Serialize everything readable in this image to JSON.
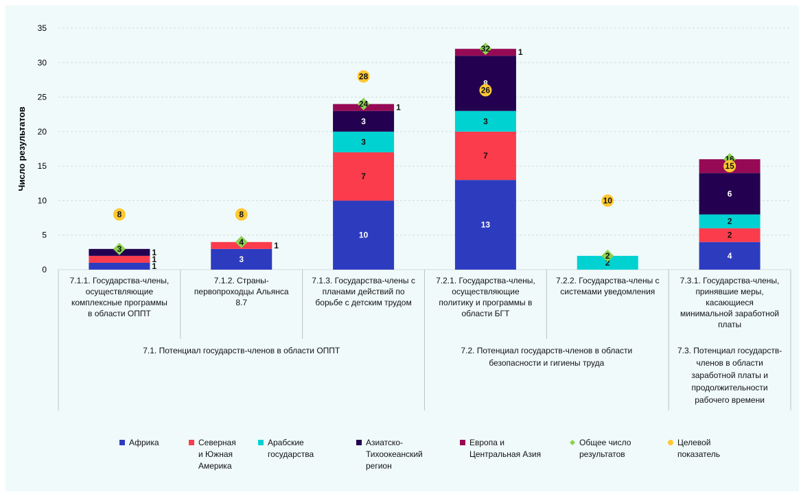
{
  "chart_data": {
    "type": "bar",
    "ylabel": "Число результатов",
    "ylim": [
      0,
      35
    ],
    "yticks": [
      0,
      5,
      10,
      15,
      20,
      25,
      30,
      35
    ],
    "grid": true,
    "legend_position": "bottom",
    "categories": [
      [
        "7.1.1. Государства-члены,",
        "осуществляющие",
        "комплексные программы",
        "в области ОППТ"
      ],
      [
        "7.1.2. Страны-",
        "первопроходцы Альянса",
        "8.7"
      ],
      [
        "7.1.3. Государства-члены с",
        "планами действий по",
        "борьбе с детским трудом"
      ],
      [
        "7.2.1. Государства-члены,",
        "осуществляющие",
        "политику и программы в",
        "области БГТ"
      ],
      [
        "7.2.2. Государства-члены с",
        "системами уведомления"
      ],
      [
        "7.3.1. Государства-члены,",
        "принявшие меры,",
        "касающиеся",
        "минимальной заработной",
        "платы"
      ]
    ],
    "groups": [
      {
        "label": [
          "7.1. Потенциал государств-членов в области ОППТ"
        ]
      },
      {
        "label": [
          "7.2. Потенциал государств-членов в области",
          "безопасности и гигиены труда"
        ]
      },
      {
        "label": [
          "7.3. Потенциал государств-",
          "членов в области",
          "заработной платы и",
          "продолжительности",
          "рабочего времени"
        ]
      }
    ],
    "series": [
      {
        "name": "Африка",
        "color": "#2d3cbf",
        "values": [
          1,
          3,
          10,
          13,
          0,
          4
        ]
      },
      {
        "name": "Северная и Южная Америка",
        "legend_lines": [
          "Северная",
          "и Южная",
          "Америка"
        ],
        "color": "#fa3c4c",
        "values": [
          1,
          1,
          7,
          7,
          0,
          2
        ]
      },
      {
        "name": "Арабские государства",
        "legend_lines": [
          "Арабские",
          "государства"
        ],
        "color": "#00d2d2",
        "values": [
          0,
          0,
          3,
          3,
          2,
          2
        ]
      },
      {
        "name": "Азиатско-Тихоокеанский регион",
        "legend_lines": [
          "Азиатско-",
          "Тихоокеанский",
          "регион"
        ],
        "color": "#230050",
        "values": [
          1,
          0,
          3,
          8,
          0,
          6
        ]
      },
      {
        "name": "Европа и Центральная Азия",
        "legend_lines": [
          "Европа и",
          "Центральная Азия"
        ],
        "color": "#960a55",
        "values": [
          0,
          0,
          1,
          1,
          0,
          2
        ]
      }
    ],
    "total": {
      "name": "Общее число результатов",
      "legend_lines": [
        "Общее число",
        "результатов"
      ],
      "color": "#8cd250",
      "values": [
        3,
        4,
        24,
        32,
        2,
        16
      ]
    },
    "target": {
      "name": "Целевой показатель",
      "legend_lines": [
        "Целевой",
        "показатель"
      ],
      "color": "#ffc832",
      "values": [
        8,
        8,
        28,
        26,
        10,
        15
      ]
    }
  }
}
